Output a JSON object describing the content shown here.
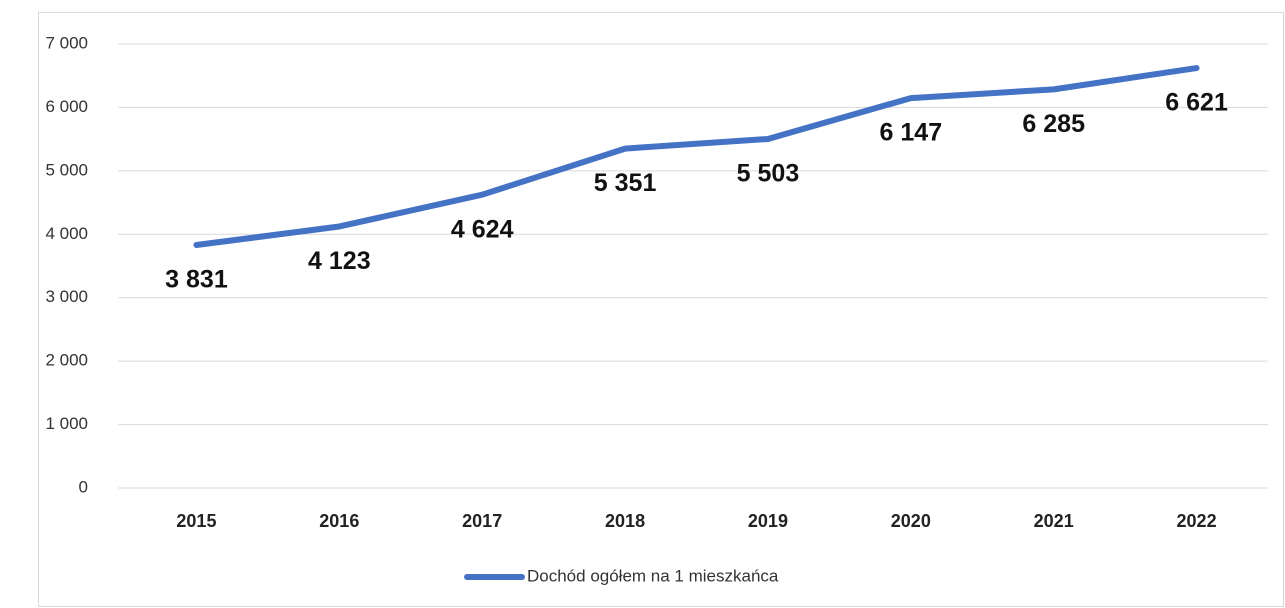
{
  "chart_data": {
    "type": "line",
    "categories": [
      "2015",
      "2016",
      "2017",
      "2018",
      "2019",
      "2020",
      "2021",
      "2022"
    ],
    "series": [
      {
        "name": "Dochód ogółem na 1 mieszkańca",
        "color": "#4472c4",
        "values": [
          3831,
          4123,
          4624,
          5351,
          5503,
          6147,
          6285,
          6621
        ],
        "value_labels": [
          "3 831",
          "4 123",
          "4 624",
          "5 351",
          "5 503",
          "6 147",
          "6 285",
          "6 621"
        ]
      }
    ],
    "ylim": [
      0,
      7000
    ],
    "yticks": [
      0,
      {
        "value": 1000,
        "label": "1 000"
      },
      {
        "value": 2000,
        "label": "2 000"
      },
      {
        "value": 3000,
        "label": "3 000"
      },
      {
        "value": 4000,
        "label": "4 000"
      },
      {
        "value": 5000,
        "label": "5 000"
      },
      {
        "value": 6000,
        "label": "6 000"
      },
      {
        "value": 7000,
        "label": "7 000"
      }
    ],
    "grid": true,
    "legend": "bottom"
  }
}
